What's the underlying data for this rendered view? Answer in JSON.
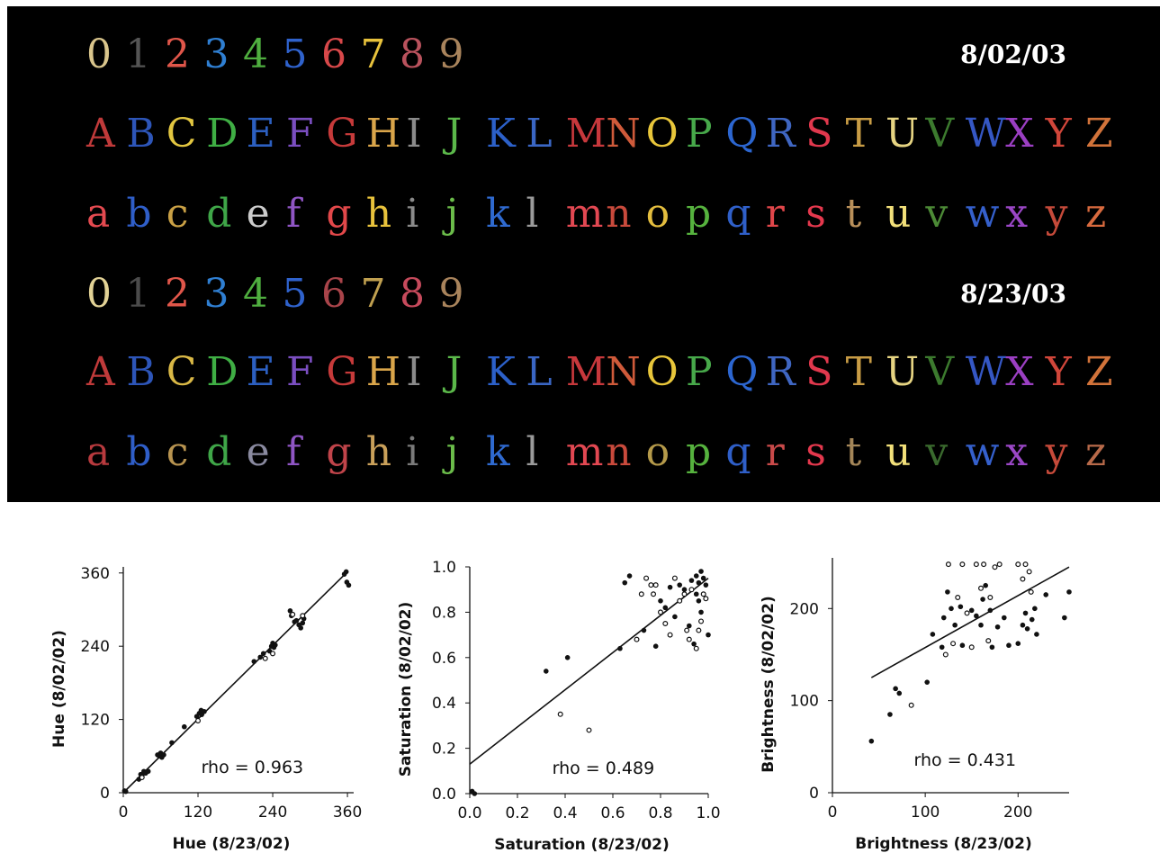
{
  "sessions": [
    {
      "date": "8/02/03",
      "rows": [
        [
          [
            "0",
            "#d9c58c"
          ],
          [
            "1",
            "#555555"
          ],
          [
            "2",
            "#e0564a"
          ],
          [
            "3",
            "#2f7fd2"
          ],
          [
            "4",
            "#4fae3f"
          ],
          [
            "5",
            "#2f62cc"
          ],
          [
            "6",
            "#d8484a"
          ],
          [
            "7",
            "#e8c23c"
          ],
          [
            "8",
            "#b9525d"
          ],
          [
            "9",
            "#a9845c"
          ]
        ],
        [
          [
            "A",
            "#c03a3a"
          ],
          [
            "B",
            "#2d55b8"
          ],
          [
            "C",
            "#e2c640"
          ],
          [
            "D",
            "#3fae44"
          ],
          [
            "E",
            "#2c5fc0"
          ],
          [
            "F",
            "#7a4ec0"
          ],
          [
            "G",
            "#c63a3a"
          ],
          [
            "H",
            "#d9a54a"
          ],
          [
            "I",
            "#8a8a8a"
          ],
          [
            "J",
            "#5bb84a"
          ],
          [
            "K",
            "#2c60c8"
          ],
          [
            "L",
            "#3a66c4"
          ],
          [
            "M",
            "#c7383c"
          ],
          [
            "N",
            "#cf5a3a"
          ],
          [
            "O",
            "#e8c63a"
          ],
          [
            "P",
            "#47a84a"
          ],
          [
            "Q",
            "#2c66d0"
          ],
          [
            "R",
            "#3f66c2"
          ],
          [
            "S",
            "#e1384d"
          ],
          [
            "T",
            "#c89c45"
          ],
          [
            "U",
            "#e6d482"
          ],
          [
            "V",
            "#3c7a2e"
          ],
          [
            "W",
            "#3557c4"
          ],
          [
            "X",
            "#9b3fc2"
          ],
          [
            "Y",
            "#d0463a"
          ],
          [
            "Z",
            "#d2733a"
          ]
        ],
        [
          [
            "a",
            "#e44a50"
          ],
          [
            "b",
            "#2f5ec8"
          ],
          [
            "c",
            "#c9a045"
          ],
          [
            "d",
            "#3fa648"
          ],
          [
            "e",
            "#cccccc"
          ],
          [
            "f",
            "#8f55c4"
          ],
          [
            "g",
            "#e2484a"
          ],
          [
            "h",
            "#e8c23c"
          ],
          [
            "i",
            "#8a8a8a"
          ],
          [
            "j",
            "#6bbc4a"
          ],
          [
            "k",
            "#2f6ad0"
          ],
          [
            "l",
            "#9a9a9a"
          ],
          [
            "m",
            "#e24852"
          ],
          [
            "n",
            "#c94a3c"
          ],
          [
            "o",
            "#e3bd3e"
          ],
          [
            "p",
            "#56b23e"
          ],
          [
            "q",
            "#2f5fc8"
          ],
          [
            "r",
            "#e0464a"
          ],
          [
            "s",
            "#e4384d"
          ],
          [
            "t",
            "#b9905a"
          ],
          [
            "u",
            "#f2e07a"
          ],
          [
            "v",
            "#4c8a36"
          ],
          [
            "w",
            "#3560cc"
          ],
          [
            "x",
            "#9b47c6"
          ],
          [
            "y",
            "#c64a3a"
          ],
          [
            "z",
            "#d86a3e"
          ]
        ]
      ]
    },
    {
      "date": "8/23/03",
      "rows": [
        [
          [
            "0",
            "#e2d296"
          ],
          [
            "1",
            "#4b4b4b"
          ],
          [
            "2",
            "#e0564a"
          ],
          [
            "3",
            "#2f7fd2"
          ],
          [
            "4",
            "#4fae3f"
          ],
          [
            "5",
            "#2f62cc"
          ],
          [
            "6",
            "#a9444a"
          ],
          [
            "7",
            "#c0a050"
          ],
          [
            "8",
            "#c64a5c"
          ],
          [
            "9",
            "#a9845c"
          ]
        ],
        [
          [
            "A",
            "#c03a3a"
          ],
          [
            "B",
            "#2d55b8"
          ],
          [
            "C",
            "#d9b846"
          ],
          [
            "D",
            "#3fae44"
          ],
          [
            "E",
            "#2c5fc0"
          ],
          [
            "F",
            "#7a4ec0"
          ],
          [
            "G",
            "#c63a3a"
          ],
          [
            "H",
            "#d9a54a"
          ],
          [
            "I",
            "#8a8a8a"
          ],
          [
            "J",
            "#5bb84a"
          ],
          [
            "K",
            "#2c60c8"
          ],
          [
            "L",
            "#3a66c4"
          ],
          [
            "M",
            "#c7383c"
          ],
          [
            "N",
            "#cf5a3a"
          ],
          [
            "O",
            "#e8c63a"
          ],
          [
            "P",
            "#47a84a"
          ],
          [
            "Q",
            "#2c66d0"
          ],
          [
            "R",
            "#3f66c2"
          ],
          [
            "S",
            "#e1384d"
          ],
          [
            "T",
            "#c89c45"
          ],
          [
            "U",
            "#e6d482"
          ],
          [
            "V",
            "#3c7a2e"
          ],
          [
            "W",
            "#3557c4"
          ],
          [
            "X",
            "#9b3fc2"
          ],
          [
            "Y",
            "#d0463a"
          ],
          [
            "Z",
            "#d2733a"
          ]
        ],
        [
          [
            "a",
            "#b83a3e"
          ],
          [
            "b",
            "#2f5ec8"
          ],
          [
            "c",
            "#b89450"
          ],
          [
            "d",
            "#3fa648"
          ],
          [
            "e",
            "#8a8aa0"
          ],
          [
            "f",
            "#8f55c4"
          ],
          [
            "g",
            "#c0444a"
          ],
          [
            "h",
            "#c9a05a"
          ],
          [
            "i",
            "#7a7a7a"
          ],
          [
            "j",
            "#6bbc4a"
          ],
          [
            "k",
            "#2f6ad0"
          ],
          [
            "l",
            "#9a9a9a"
          ],
          [
            "m",
            "#e24852"
          ],
          [
            "n",
            "#c94a3c"
          ],
          [
            "o",
            "#b59a4a"
          ],
          [
            "p",
            "#56b23e"
          ],
          [
            "q",
            "#2f5fc8"
          ],
          [
            "r",
            "#c94a4a"
          ],
          [
            "s",
            "#e4384d"
          ],
          [
            "t",
            "#a48658"
          ],
          [
            "u",
            "#f2e07a"
          ],
          [
            "v",
            "#3a6a2e"
          ],
          [
            "w",
            "#3560cc"
          ],
          [
            "x",
            "#9b47c6"
          ],
          [
            "y",
            "#c64a3a"
          ],
          [
            "z",
            "#b86a4a"
          ]
        ]
      ]
    }
  ],
  "chart_data": [
    {
      "type": "scatter",
      "xlabel": "Hue  (8/23/02)",
      "ylabel": "Hue  (8/02/02)",
      "xlim": [
        0,
        370
      ],
      "ylim": [
        0,
        370
      ],
      "xticks": [
        0,
        120,
        240,
        360
      ],
      "yticks": [
        0,
        120,
        240,
        360
      ],
      "annotation": "rho  =  0.963",
      "fit": [
        [
          0,
          0
        ],
        [
          360,
          362
        ]
      ],
      "points": [
        [
          2,
          3
        ],
        [
          4,
          2
        ],
        [
          25,
          22
        ],
        [
          28,
          30
        ],
        [
          30,
          28
        ],
        [
          33,
          35
        ],
        [
          36,
          32
        ],
        [
          40,
          35
        ],
        [
          55,
          62
        ],
        [
          58,
          60
        ],
        [
          60,
          65
        ],
        [
          62,
          58
        ],
        [
          65,
          62
        ],
        [
          78,
          82
        ],
        [
          98,
          108
        ],
        [
          118,
          125
        ],
        [
          122,
          130
        ],
        [
          125,
          135
        ],
        [
          126,
          128
        ],
        [
          130,
          133
        ],
        [
          210,
          215
        ],
        [
          220,
          222
        ],
        [
          225,
          228
        ],
        [
          235,
          232
        ],
        [
          238,
          240
        ],
        [
          240,
          245
        ],
        [
          242,
          238
        ],
        [
          244,
          242
        ],
        [
          268,
          298
        ],
        [
          270,
          290
        ],
        [
          275,
          280
        ],
        [
          278,
          282
        ],
        [
          282,
          275
        ],
        [
          285,
          270
        ],
        [
          288,
          278
        ],
        [
          290,
          285
        ],
        [
          355,
          358
        ],
        [
          358,
          362
        ],
        [
          359,
          345
        ],
        [
          362,
          340
        ]
      ],
      "open_points": [
        [
          228,
          220
        ],
        [
          240,
          228
        ],
        [
          272,
          292
        ],
        [
          288,
          290
        ],
        [
          30,
          25
        ],
        [
          120,
          118
        ]
      ]
    },
    {
      "type": "scatter",
      "xlabel": "Saturation  (8/23/02)",
      "ylabel": "Saturation  (8/02/02)",
      "xlim": [
        0,
        1.0
      ],
      "ylim": [
        0,
        1.0
      ],
      "xticks": [
        0.0,
        0.2,
        0.4,
        0.6,
        0.8,
        1.0
      ],
      "yticks": [
        0.0,
        0.2,
        0.4,
        0.6,
        0.8,
        1.0
      ],
      "annotation": "rho  =  0.489",
      "fit": [
        [
          0.0,
          0.13
        ],
        [
          1.0,
          0.95
        ]
      ],
      "points": [
        [
          0.01,
          0.01
        ],
        [
          0.02,
          0.0
        ],
        [
          0.32,
          0.54
        ],
        [
          0.41,
          0.6
        ],
        [
          0.63,
          0.64
        ],
        [
          0.65,
          0.93
        ],
        [
          0.67,
          0.96
        ],
        [
          0.73,
          0.72
        ],
        [
          0.78,
          0.65
        ],
        [
          0.8,
          0.85
        ],
        [
          0.82,
          0.82
        ],
        [
          0.84,
          0.91
        ],
        [
          0.86,
          0.78
        ],
        [
          0.88,
          0.92
        ],
        [
          0.9,
          0.9
        ],
        [
          0.92,
          0.74
        ],
        [
          0.93,
          0.94
        ],
        [
          0.95,
          0.88
        ],
        [
          0.95,
          0.96
        ],
        [
          0.96,
          0.93
        ],
        [
          0.97,
          0.98
        ],
        [
          0.98,
          0.95
        ],
        [
          0.99,
          0.92
        ],
        [
          1.0,
          0.7
        ],
        [
          0.96,
          0.85
        ],
        [
          0.97,
          0.8
        ],
        [
          0.94,
          0.66
        ]
      ],
      "open_points": [
        [
          0.38,
          0.35
        ],
        [
          0.5,
          0.28
        ],
        [
          0.7,
          0.68
        ],
        [
          0.74,
          0.95
        ],
        [
          0.76,
          0.92
        ],
        [
          0.77,
          0.88
        ],
        [
          0.8,
          0.8
        ],
        [
          0.82,
          0.75
        ],
        [
          0.84,
          0.7
        ],
        [
          0.86,
          0.95
        ],
        [
          0.88,
          0.85
        ],
        [
          0.9,
          0.88
        ],
        [
          0.91,
          0.72
        ],
        [
          0.92,
          0.68
        ],
        [
          0.93,
          0.9
        ],
        [
          0.95,
          0.64
        ],
        [
          0.96,
          0.72
        ],
        [
          0.97,
          0.76
        ],
        [
          0.98,
          0.88
        ],
        [
          0.99,
          0.86
        ],
        [
          0.72,
          0.88
        ],
        [
          0.78,
          0.92
        ]
      ]
    },
    {
      "type": "scatter",
      "xlabel": "Brightness  (8/23/02)",
      "ylabel": "Brightness  (8/02/02)",
      "xlim": [
        0,
        255
      ],
      "ylim": [
        0,
        255
      ],
      "xticks": [
        0,
        100,
        200
      ],
      "yticks": [
        0,
        100,
        200
      ],
      "annotation": "rho  =  0.431",
      "fit": [
        [
          42,
          125
        ],
        [
          255,
          245
        ]
      ],
      "points": [
        [
          42,
          56
        ],
        [
          62,
          85
        ],
        [
          68,
          113
        ],
        [
          72,
          108
        ],
        [
          102,
          120
        ],
        [
          108,
          172
        ],
        [
          118,
          158
        ],
        [
          120,
          190
        ],
        [
          124,
          218
        ],
        [
          128,
          200
        ],
        [
          132,
          182
        ],
        [
          138,
          202
        ],
        [
          140,
          160
        ],
        [
          150,
          198
        ],
        [
          155,
          192
        ],
        [
          160,
          182
        ],
        [
          162,
          210
        ],
        [
          165,
          225
        ],
        [
          170,
          198
        ],
        [
          172,
          158
        ],
        [
          178,
          180
        ],
        [
          185,
          190
        ],
        [
          190,
          160
        ],
        [
          200,
          162
        ],
        [
          205,
          182
        ],
        [
          208,
          195
        ],
        [
          210,
          178
        ],
        [
          215,
          188
        ],
        [
          218,
          200
        ],
        [
          220,
          172
        ],
        [
          230,
          215
        ],
        [
          250,
          190
        ],
        [
          255,
          218
        ]
      ],
      "open_points": [
        [
          85,
          95
        ],
        [
          122,
          150
        ],
        [
          130,
          162
        ],
        [
          135,
          212
        ],
        [
          140,
          248
        ],
        [
          145,
          195
        ],
        [
          150,
          158
        ],
        [
          155,
          248
        ],
        [
          160,
          222
        ],
        [
          163,
          248
        ],
        [
          168,
          165
        ],
        [
          170,
          212
        ],
        [
          175,
          245
        ],
        [
          180,
          248
        ],
        [
          200,
          248
        ],
        [
          205,
          232
        ],
        [
          208,
          248
        ],
        [
          212,
          240
        ],
        [
          214,
          218
        ],
        [
          125,
          248
        ]
      ]
    }
  ]
}
